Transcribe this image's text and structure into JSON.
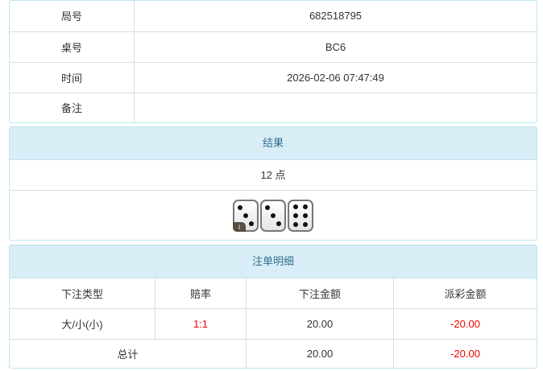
{
  "info": {
    "rows": [
      {
        "label": "局号",
        "value": "682518795"
      },
      {
        "label": "桌号",
        "value": "BC6"
      },
      {
        "label": "时间",
        "value": "2026-02-06 07:47:49"
      },
      {
        "label": "备注",
        "value": ""
      }
    ]
  },
  "result": {
    "title": "结果",
    "points": "12 点",
    "dice": [
      3,
      3,
      6
    ],
    "info_icon": "i"
  },
  "bets": {
    "title": "注单明细",
    "headers": [
      "下注类型",
      "赔率",
      "下注金额",
      "派彩金额"
    ],
    "rows": [
      {
        "type": "大/小(小)",
        "odds": "1:1",
        "amount": "20.00",
        "payout": "-20.00"
      }
    ],
    "total": {
      "label": "总计",
      "amount": "20.00",
      "payout": "-20.00"
    }
  },
  "colors": {
    "header_bg": "#d9edf7",
    "header_text": "#31708f",
    "negative": "#ee0000",
    "odds": "#ee0000"
  }
}
